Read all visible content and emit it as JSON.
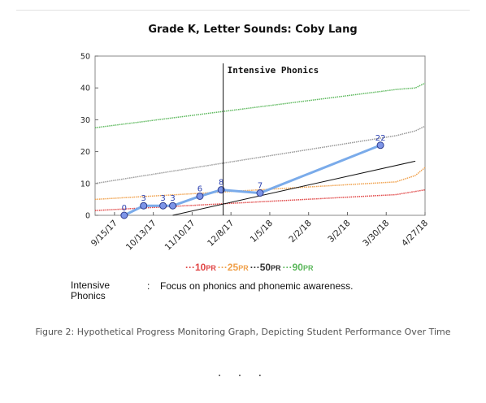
{
  "chart_data": {
    "type": "line",
    "title": "Grade K, Letter Sounds: Coby Lang",
    "xlabel": "",
    "ylabel": "",
    "ylim": [
      0,
      50
    ],
    "yticks": [
      0,
      10,
      20,
      30,
      40,
      50
    ],
    "xticks": [
      "9/15/17",
      "10/13/17",
      "11/10/17",
      "12/8/17",
      "1/5/18",
      "2/2/18",
      "3/2/18",
      "3/30/18",
      "4/27/18"
    ],
    "grid": false,
    "annotation": {
      "label": "Intensive Phonics",
      "x": 6.6
    },
    "student": {
      "x": [
        1.5,
        2.5,
        3.5,
        4.0,
        5.4,
        6.5,
        8.5,
        14.7
      ],
      "y": [
        0,
        3,
        3,
        3,
        6,
        8,
        7,
        22
      ],
      "labels": [
        "0",
        "3",
        "3",
        "3",
        "6",
        "8",
        "7",
        "22"
      ],
      "color": "#7aabea"
    },
    "trend": {
      "x": [
        4.0,
        16.5
      ],
      "y": [
        0,
        17
      ],
      "color": "#111111"
    },
    "percentile_series": [
      {
        "name": "10PR",
        "color": "#e04545",
        "x": [
          0,
          15.5,
          16.5,
          17
        ],
        "y": [
          1.5,
          6.5,
          7.5,
          8
        ]
      },
      {
        "name": "25PR",
        "color": "#f0a04a",
        "x": [
          0,
          15.5,
          16.5,
          17
        ],
        "y": [
          5,
          10.5,
          12.5,
          15
        ]
      },
      {
        "name": "50PR",
        "color": "#999999",
        "x": [
          0,
          15.5,
          16.5,
          17
        ],
        "y": [
          10,
          25,
          26.5,
          28
        ]
      },
      {
        "name": "90PR",
        "color": "#5cb85c",
        "x": [
          0,
          15.5,
          16.5,
          17
        ],
        "y": [
          27.5,
          39.5,
          40,
          41.5
        ]
      }
    ]
  },
  "legend": {
    "prefix": "···",
    "items": [
      {
        "num": "10",
        "pr": "PR",
        "color": "#e04545"
      },
      {
        "num": "25",
        "pr": "PR",
        "color": "#f0a04a"
      },
      {
        "num": "50",
        "pr": "PR",
        "color": "#333333"
      },
      {
        "num": "90",
        "pr": "PR",
        "color": "#5cb85c"
      }
    ]
  },
  "note": {
    "term": "Intensive Phonics",
    "colon": ":",
    "definition": "Focus on phonics and phonemic awareness."
  },
  "caption": "Figure 2: Hypothetical Progress Monitoring Graph, Depicting Student Performance Over Time",
  "separator": "· · ·"
}
